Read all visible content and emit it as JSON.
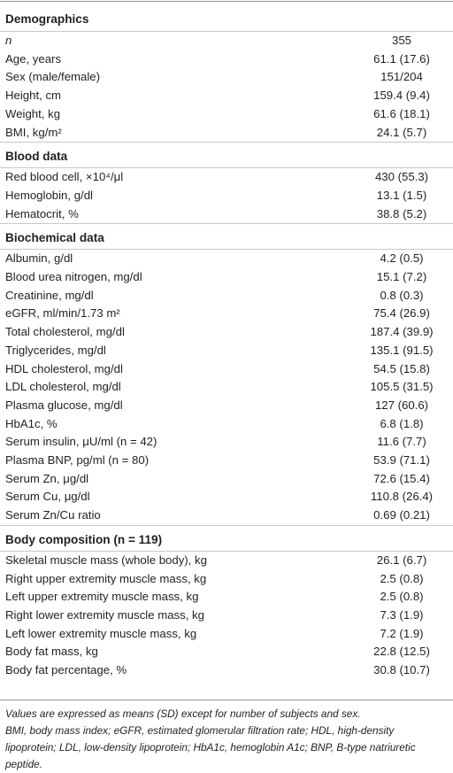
{
  "sections": [
    {
      "title": "Demographics",
      "rows": [
        {
          "label": "n",
          "value": "355",
          "italic": true
        },
        {
          "label": "Age, years",
          "value": "61.1 (17.6)"
        },
        {
          "label": "Sex (male/female)",
          "value": "151/204"
        },
        {
          "label": "Height, cm",
          "value": "159.4 (9.4)"
        },
        {
          "label": "Weight, kg",
          "value": "61.6 (18.1)"
        },
        {
          "label": "BMI, kg/m²",
          "value": "24.1 (5.7)"
        }
      ]
    },
    {
      "title": "Blood data",
      "rows": [
        {
          "label": "Red blood cell, ×10⁴/μl",
          "value": "430 (55.3)"
        },
        {
          "label": "Hemoglobin, g/dl",
          "value": "13.1 (1.5)"
        },
        {
          "label": "Hematocrit, %",
          "value": "38.8 (5.2)"
        }
      ]
    },
    {
      "title": "Biochemical data",
      "rows": [
        {
          "label": "Albumin, g/dl",
          "value": "4.2 (0.5)"
        },
        {
          "label": "Blood urea nitrogen, mg/dl",
          "value": "15.1 (7.2)"
        },
        {
          "label": "Creatinine, mg/dl",
          "value": "0.8 (0.3)"
        },
        {
          "label": "eGFR, ml/min/1.73 m²",
          "value": "75.4 (26.9)"
        },
        {
          "label": "Total cholesterol, mg/dl",
          "value": "187.4 (39.9)"
        },
        {
          "label": "Triglycerides, mg/dl",
          "value": "135.1 (91.5)"
        },
        {
          "label": "HDL cholesterol, mg/dl",
          "value": "54.5 (15.8)"
        },
        {
          "label": "LDL cholesterol, mg/dl",
          "value": "105.5 (31.5)"
        },
        {
          "label": "Plasma glucose, mg/dl",
          "value": "127 (60.6)"
        },
        {
          "label": "HbA1c, %",
          "value": "6.8 (1.8)"
        },
        {
          "label": "Serum insulin, μU/ml (n = 42)",
          "value": "11.6 (7.7)"
        },
        {
          "label": "Plasma BNP, pg/ml (n = 80)",
          "value": "53.9 (71.1)"
        },
        {
          "label": "Serum Zn, μg/dl",
          "value": "72.6 (15.4)"
        },
        {
          "label": "Serum Cu, μg/dl",
          "value": "110.8 (26.4)"
        },
        {
          "label": "Serum Zn/Cu ratio",
          "value": "0.69 (0.21)"
        }
      ]
    },
    {
      "title": "Body composition (n = 119)",
      "rows": [
        {
          "label": "Skeletal muscle mass (whole body), kg",
          "value": "26.1 (6.7)"
        },
        {
          "label": "Right upper extremity muscle mass, kg",
          "value": "2.5 (0.8)"
        },
        {
          "label": "Left upper extremity muscle mass, kg",
          "value": "2.5 (0.8)"
        },
        {
          "label": "Right lower extremity muscle mass, kg",
          "value": "7.3 (1.9)"
        },
        {
          "label": "Left lower extremity muscle mass, kg",
          "value": "7.2 (1.9)"
        },
        {
          "label": "Body fat mass, kg",
          "value": "22.8 (12.5)"
        },
        {
          "label": "Body fat percentage, %",
          "value": "30.8 (10.7)"
        }
      ]
    }
  ],
  "footnotes": [
    "Values are expressed as means (SD) except for number of subjects and sex.",
    "BMI, body mass index; eGFR, estimated glomerular filtration rate; HDL, high-density lipoprotein; LDL, low-density lipoprotein; HbA1c, hemoglobin A1c; BNP, B-type natriuretic peptide."
  ]
}
